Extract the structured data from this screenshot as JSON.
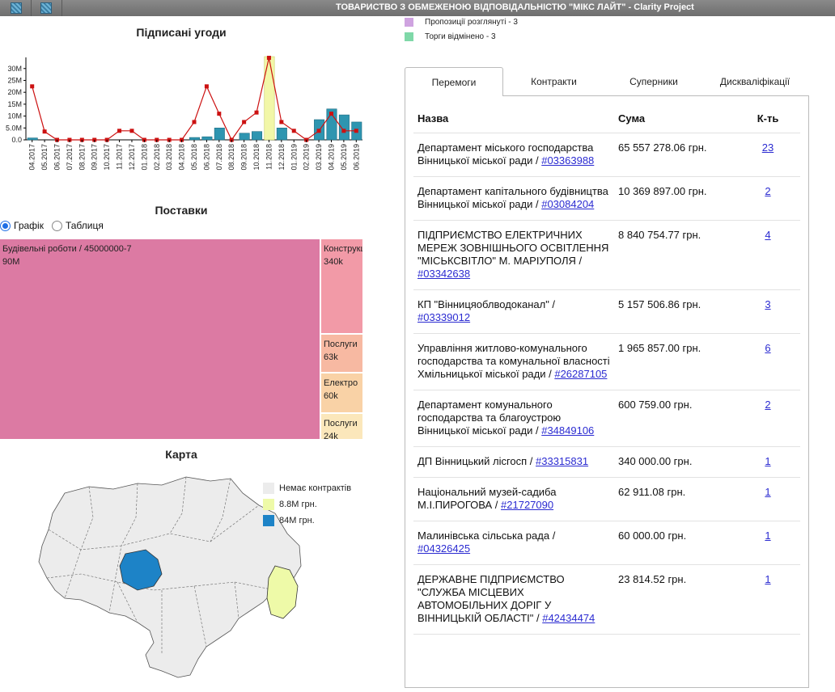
{
  "window": {
    "title": "ТОВАРИСТВО З ОБМЕЖЕНОЮ ВІДПОВІДАЛЬНІСТЮ \"МІКС ЛАЙТ\" - Clarity Project"
  },
  "top_legend": [
    {
      "label": "Пропозиції розглянуті - 3",
      "color": "#cfa3e0"
    },
    {
      "label": "Торги відмінено - 3",
      "color": "#7fd8a8"
    }
  ],
  "signed": {
    "title": "Підписані угоди",
    "chart_data": {
      "type": "bar",
      "categories": [
        "04.2017",
        "05.2017",
        "06.2017",
        "07.2017",
        "08.2017",
        "09.2017",
        "10.2017",
        "11.2017",
        "12.2017",
        "01.2018",
        "02.2018",
        "03.2018",
        "04.2018",
        "05.2018",
        "06.2018",
        "07.2018",
        "08.2018",
        "09.2018",
        "10.2018",
        "11.2018",
        "12.2018",
        "01.2019",
        "02.2019",
        "03.2019",
        "04.2019",
        "05.2019",
        "06.2019"
      ],
      "series": [
        {
          "kind": "bar",
          "values": [
            0.8,
            0,
            0,
            0,
            0,
            0,
            0,
            0,
            0,
            0,
            0,
            0,
            0,
            1.0,
            1.3,
            5.0,
            0,
            2.8,
            3.5,
            35,
            5.0,
            0,
            0,
            8.5,
            13,
            10.5,
            7.5
          ],
          "highlight_index": 19
        },
        {
          "kind": "line",
          "values": [
            22.5,
            3.5,
            0,
            0,
            0,
            0,
            0,
            3.8,
            3.8,
            0,
            0,
            0,
            0,
            7.5,
            22.5,
            11,
            0,
            7.5,
            11.5,
            34.5,
            7.5,
            3.8,
            0,
            3.8,
            11,
            3.8,
            3.8
          ]
        }
      ],
      "yticks": [
        "0.0",
        "5.0M",
        "10M",
        "15M",
        "20M",
        "25M",
        "30M"
      ],
      "ylim": [
        0,
        34
      ],
      "colors": {
        "bar": "#2e95b0",
        "highlight": "#f2f7a8",
        "line": "#cc1111"
      }
    }
  },
  "supplies": {
    "title": "Поставки",
    "radio": [
      {
        "label": "Графік",
        "checked": true
      },
      {
        "label": "Таблиця",
        "checked": false
      }
    ],
    "treemap": [
      {
        "label": "Будівельні роботи / 45000000-7",
        "value": "90M",
        "color": "#dc7aa3"
      },
      {
        "label": "Конструкц",
        "value": "340k",
        "color": "#f29aa7"
      },
      {
        "label": "Послуги",
        "value": "63k",
        "color": "#f7b9a2"
      },
      {
        "label": "Електро",
        "value": "60k",
        "color": "#f9d2a6"
      },
      {
        "label": "Послуги",
        "value": "24k",
        "color": "#fbe7bb"
      }
    ]
  },
  "map": {
    "title": "Карта",
    "legend": [
      {
        "label": "Немає контрактів",
        "color": "#ececec"
      },
      {
        "label": "8.8M грн.",
        "color": "#eefaa8"
      },
      {
        "label": "84M грн.",
        "color": "#1d83c7"
      }
    ]
  },
  "tabs": [
    {
      "label": "Перемоги",
      "active": true
    },
    {
      "label": "Контракти",
      "active": false
    },
    {
      "label": "Суперники",
      "active": false
    },
    {
      "label": "Дискваліфікації",
      "active": false
    }
  ],
  "wins": {
    "headers": {
      "name": "Назва",
      "sum": "Сума",
      "count": "К-ть"
    },
    "rows": [
      {
        "name": "Департамент міського господарства Вінницької міської ради / ",
        "code": "#03363988",
        "sum": "65 557 278.06 грн.",
        "count": "23"
      },
      {
        "name": "Департамент капітального будівництва Вінницької міської ради / ",
        "code": "#03084204",
        "sum": "10 369 897.00 грн.",
        "count": "2"
      },
      {
        "name": "ПІДПРИЄМСТВО ЕЛЕКТРИЧНИХ МЕРЕЖ ЗОВНІШНЬОГО ОСВІТЛЕННЯ \"МІСЬКСВІТЛО\" М. МАРІУПОЛЯ / ",
        "code": "#03342638",
        "sum": "8 840 754.77 грн.",
        "count": "4"
      },
      {
        "name": "КП \"Вінницяоблводоканал\" / ",
        "code": "#03339012",
        "sum": "5 157 506.86 грн.",
        "count": "3"
      },
      {
        "name": "Управління житлово-комунального господарства та комунальної власності Хмільницької міської ради / ",
        "code": "#26287105",
        "sum": "1 965 857.00 грн.",
        "count": "6"
      },
      {
        "name": "Департамент комунального господарства та благоустрою Вінницької міської ради / ",
        "code": "#34849106",
        "sum": "600 759.00 грн.",
        "count": "2"
      },
      {
        "name": "ДП Вінницький лісгосп / ",
        "code": "#33315831",
        "sum": "340 000.00 грн.",
        "count": "1"
      },
      {
        "name": "Національний музей-садиба М.І.ПИРОГОВА / ",
        "code": "#21727090",
        "sum": "62 911.08 грн.",
        "count": "1"
      },
      {
        "name": "Малинівська сільська рада / ",
        "code": "#04326425",
        "sum": "60 000.00 грн.",
        "count": "1"
      },
      {
        "name": "ДЕРЖАВНЕ ПІДПРИЄМСТВО \"СЛУЖБА МІСЦЕВИХ АВТОМОБІЛЬНИХ ДОРІГ У ВІННИЦЬКІЙ ОБЛАСТІ\" / ",
        "code": "#42434474",
        "sum": "23 814.52 грн.",
        "count": "1"
      }
    ]
  }
}
